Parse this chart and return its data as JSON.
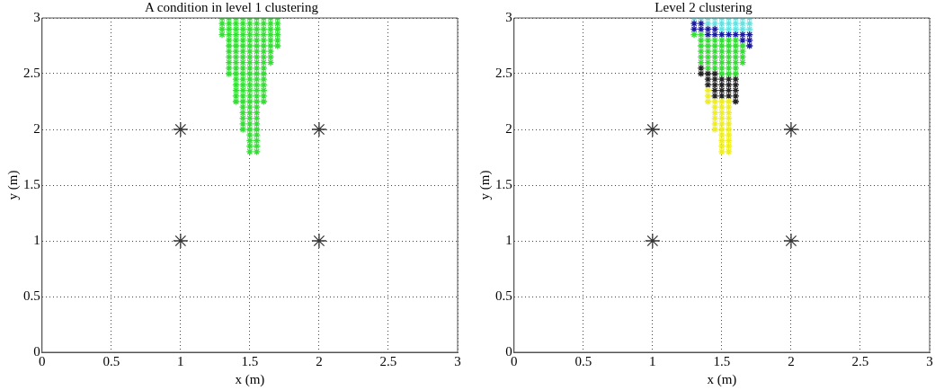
{
  "chart_data": [
    {
      "type": "scatter",
      "title": "A condition in level 1 clustering",
      "xlabel": "x (m)",
      "ylabel": "y (m)",
      "xlim": [
        0,
        3
      ],
      "ylim": [
        0,
        3
      ],
      "xticks": [
        0,
        0.5,
        1,
        1.5,
        2,
        2.5,
        3
      ],
      "yticks": [
        0,
        0.5,
        1,
        1.5,
        2,
        2.5,
        3
      ],
      "grid": true,
      "legend": false,
      "series": [
        {
          "color": "#33dd33",
          "marker": "cross",
          "x": [
            1.3,
            1.35,
            1.4,
            1.45,
            1.5,
            1.55,
            1.6,
            1.65,
            1.7,
            1.3,
            1.35,
            1.4,
            1.45,
            1.5,
            1.55,
            1.6,
            1.65,
            1.7,
            1.3,
            1.35,
            1.4,
            1.45,
            1.5,
            1.55,
            1.6,
            1.65,
            1.7,
            1.3,
            1.35,
            1.4,
            1.45,
            1.5,
            1.55,
            1.6,
            1.65,
            1.7,
            1.35,
            1.4,
            1.45,
            1.5,
            1.55,
            1.6,
            1.65,
            1.7,
            1.35,
            1.4,
            1.45,
            1.5,
            1.55,
            1.6,
            1.65,
            1.7,
            1.35,
            1.4,
            1.45,
            1.5,
            1.55,
            1.6,
            1.65,
            1.35,
            1.4,
            1.45,
            1.5,
            1.55,
            1.6,
            1.65,
            1.35,
            1.4,
            1.45,
            1.5,
            1.55,
            1.6,
            1.65,
            1.35,
            1.4,
            1.45,
            1.5,
            1.55,
            1.6,
            1.35,
            1.4,
            1.45,
            1.5,
            1.55,
            1.6,
            1.4,
            1.45,
            1.5,
            1.55,
            1.6,
            1.4,
            1.45,
            1.5,
            1.55,
            1.6,
            1.4,
            1.45,
            1.5,
            1.55,
            1.6,
            1.4,
            1.45,
            1.5,
            1.55,
            1.6,
            1.4,
            1.45,
            1.5,
            1.55,
            1.6,
            1.45,
            1.5,
            1.55,
            1.45,
            1.5,
            1.55,
            1.45,
            1.5,
            1.55,
            1.45,
            1.5,
            1.55,
            1.45,
            1.5,
            1.55,
            1.5,
            1.55,
            1.5,
            1.55,
            1.5,
            1.55,
            1.5,
            1.55
          ],
          "values": [
            3,
            3,
            3,
            3,
            3,
            3,
            3,
            3,
            3,
            2.95,
            2.95,
            2.95,
            2.95,
            2.95,
            2.95,
            2.95,
            2.95,
            2.95,
            2.9,
            2.9,
            2.9,
            2.9,
            2.9,
            2.9,
            2.9,
            2.9,
            2.9,
            2.85,
            2.85,
            2.85,
            2.85,
            2.85,
            2.85,
            2.85,
            2.85,
            2.85,
            2.8,
            2.8,
            2.8,
            2.8,
            2.8,
            2.8,
            2.8,
            2.8,
            2.75,
            2.75,
            2.75,
            2.75,
            2.75,
            2.75,
            2.75,
            2.75,
            2.7,
            2.7,
            2.7,
            2.7,
            2.7,
            2.7,
            2.7,
            2.65,
            2.65,
            2.65,
            2.65,
            2.65,
            2.65,
            2.65,
            2.6,
            2.6,
            2.6,
            2.6,
            2.6,
            2.6,
            2.6,
            2.55,
            2.55,
            2.55,
            2.55,
            2.55,
            2.55,
            2.5,
            2.5,
            2.5,
            2.5,
            2.5,
            2.5,
            2.45,
            2.45,
            2.45,
            2.45,
            2.45,
            2.4,
            2.4,
            2.4,
            2.4,
            2.4,
            2.35,
            2.35,
            2.35,
            2.35,
            2.35,
            2.3,
            2.3,
            2.3,
            2.3,
            2.3,
            2.25,
            2.25,
            2.25,
            2.25,
            2.25,
            2.2,
            2.2,
            2.2,
            2.15,
            2.15,
            2.15,
            2.1,
            2.1,
            2.1,
            2.05,
            2.05,
            2.05,
            2,
            2,
            2,
            1.95,
            1.95,
            1.9,
            1.9,
            1.85,
            1.85,
            1.8,
            1.8
          ]
        },
        {
          "color": "#333333",
          "marker": "cross",
          "x": [
            1,
            2,
            1,
            2
          ],
          "values": [
            2,
            2,
            1,
            1
          ]
        }
      ]
    },
    {
      "type": "scatter",
      "title": "Level 2 clustering",
      "xlabel": "x (m)",
      "ylabel": "y (m)",
      "xlim": [
        0,
        3
      ],
      "ylim": [
        0,
        3
      ],
      "xticks": [
        0,
        0.5,
        1,
        1.5,
        2,
        2.5,
        3
      ],
      "yticks": [
        0,
        0.5,
        1,
        1.5,
        2,
        2.5,
        3
      ],
      "grid": true,
      "legend": false,
      "series": [
        {
          "color": "#66e0e0",
          "marker": "cross",
          "x": [
            1.3,
            1.35,
            1.4,
            1.45,
            1.5,
            1.55,
            1.6,
            1.65,
            1.7,
            1.4,
            1.45,
            1.5,
            1.55,
            1.6,
            1.65,
            1.7,
            1.5,
            1.55,
            1.6,
            1.65,
            1.7
          ],
          "values": [
            3,
            3,
            3,
            3,
            3,
            3,
            3,
            3,
            3,
            2.95,
            2.95,
            2.95,
            2.95,
            2.95,
            2.95,
            2.95,
            2.9,
            2.9,
            2.9,
            2.9,
            2.9
          ]
        },
        {
          "color": "#1a1aa0",
          "marker": "cross",
          "x": [
            1.3,
            1.35,
            1.3,
            1.35,
            1.4,
            1.45,
            1.4,
            1.45,
            1.5,
            1.55,
            1.6,
            1.65,
            1.7,
            1.65,
            1.7,
            1.7
          ],
          "values": [
            2.95,
            2.95,
            2.9,
            2.9,
            2.9,
            2.9,
            2.85,
            2.85,
            2.85,
            2.85,
            2.85,
            2.85,
            2.85,
            2.8,
            2.8,
            2.75
          ]
        },
        {
          "color": "#33dd33",
          "marker": "cross",
          "x": [
            1.3,
            1.35,
            1.35,
            1.4,
            1.45,
            1.5,
            1.55,
            1.6,
            1.35,
            1.4,
            1.45,
            1.5,
            1.55,
            1.6,
            1.65,
            1.35,
            1.4,
            1.45,
            1.5,
            1.55,
            1.6,
            1.65,
            1.35,
            1.4,
            1.45,
            1.5,
            1.55,
            1.6,
            1.65,
            1.35,
            1.4,
            1.45,
            1.5,
            1.55,
            1.6,
            1.65,
            1.4,
            1.45,
            1.5,
            1.55,
            1.6,
            1.5,
            1.55,
            1.6
          ],
          "values": [
            2.85,
            2.85,
            2.8,
            2.8,
            2.8,
            2.8,
            2.8,
            2.8,
            2.75,
            2.75,
            2.75,
            2.75,
            2.75,
            2.75,
            2.75,
            2.7,
            2.7,
            2.7,
            2.7,
            2.7,
            2.7,
            2.7,
            2.65,
            2.65,
            2.65,
            2.65,
            2.65,
            2.65,
            2.65,
            2.6,
            2.6,
            2.6,
            2.6,
            2.6,
            2.6,
            2.6,
            2.55,
            2.55,
            2.55,
            2.55,
            2.55,
            2.5,
            2.5,
            2.5
          ]
        },
        {
          "color": "#222222",
          "marker": "cross",
          "x": [
            1.35,
            1.35,
            1.4,
            1.45,
            1.4,
            1.45,
            1.5,
            1.55,
            1.6,
            1.4,
            1.45,
            1.5,
            1.55,
            1.6,
            1.45,
            1.5,
            1.55,
            1.6,
            1.45,
            1.5,
            1.55,
            1.6,
            1.6
          ],
          "values": [
            2.55,
            2.5,
            2.5,
            2.5,
            2.45,
            2.45,
            2.45,
            2.45,
            2.45,
            2.4,
            2.4,
            2.4,
            2.4,
            2.4,
            2.35,
            2.35,
            2.35,
            2.35,
            2.3,
            2.3,
            2.3,
            2.3,
            2.25
          ]
        },
        {
          "color": "#eeee22",
          "marker": "cross",
          "x": [
            1.4,
            1.4,
            1.4,
            1.45,
            1.5,
            1.55,
            1.45,
            1.5,
            1.55,
            1.45,
            1.5,
            1.55,
            1.45,
            1.5,
            1.55,
            1.45,
            1.5,
            1.55,
            1.45,
            1.5,
            1.55,
            1.5,
            1.55,
            1.5,
            1.55,
            1.5,
            1.55,
            1.5,
            1.55
          ],
          "values": [
            2.35,
            2.3,
            2.25,
            2.25,
            2.25,
            2.25,
            2.2,
            2.2,
            2.2,
            2.15,
            2.15,
            2.15,
            2.1,
            2.1,
            2.1,
            2.05,
            2.05,
            2.05,
            2,
            2,
            2,
            1.95,
            1.95,
            1.9,
            1.9,
            1.85,
            1.85,
            1.8,
            1.8
          ]
        },
        {
          "color": "#333333",
          "marker": "cross",
          "x": [
            1,
            2,
            1,
            2
          ],
          "values": [
            2,
            2,
            1,
            1
          ]
        }
      ]
    }
  ]
}
